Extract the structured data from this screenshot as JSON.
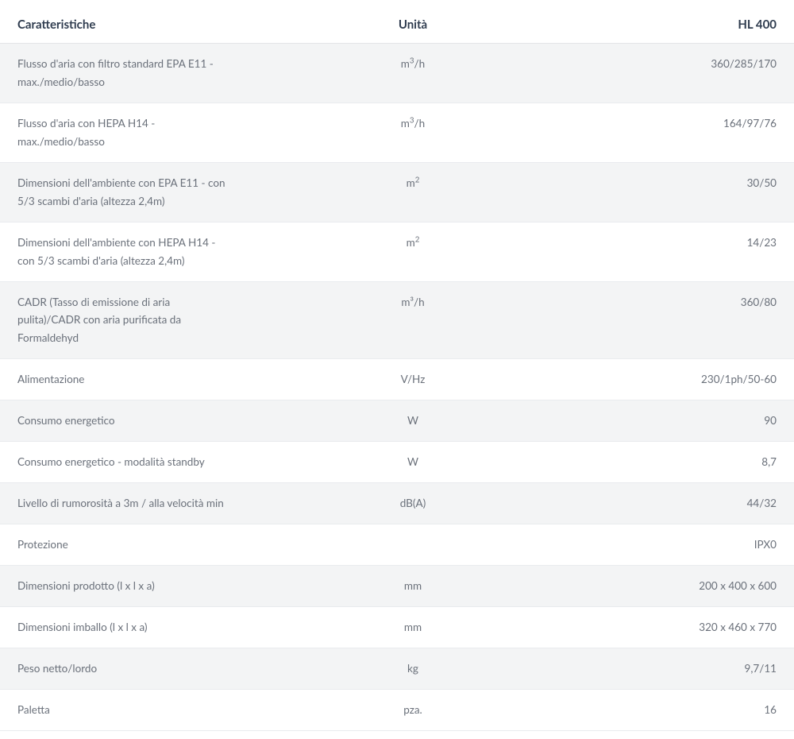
{
  "table": {
    "header": {
      "characteristics": "Caratteristiche",
      "unit": "Unità",
      "value": "HL 400"
    },
    "rows": [
      {
        "shade": true,
        "char_html": "Flusso d'aria con filtro standard EPA E11 -<br>max./medio/basso",
        "unit_html": "m<sup>3</sup>/h",
        "value": "360/285/170"
      },
      {
        "shade": false,
        "char_html": "Flusso d'aria con HEPA H14 -<br>max./medio/basso",
        "unit_html": "m<sup>3</sup>/h",
        "value": "164/97/76"
      },
      {
        "shade": true,
        "char_html": "Dimensioni dell'ambiente con EPA E11 - con<br>5/3 scambi d'aria (altezza 2,4m)",
        "unit_html": "m<sup>2</sup>",
        "value": "30/50"
      },
      {
        "shade": false,
        "char_html": "Dimensioni dell'ambiente con HEPA H14 -<br>con 5/3 scambi d'aria (altezza 2,4m)",
        "unit_html": "m<sup>2</sup>",
        "value": "14/23"
      },
      {
        "shade": true,
        "char_html": "CADR (Tasso di emissione di aria<br>pulita)/CADR con aria purificata da<br>Formaldehyd",
        "unit_html": "m³/h",
        "value": "360/80"
      },
      {
        "shade": false,
        "char_html": "Alimentazione",
        "unit_html": "V/Hz",
        "value": "230/1ph/50-60"
      },
      {
        "shade": true,
        "char_html": "Consumo energetico",
        "unit_html": "W",
        "value": "90"
      },
      {
        "shade": false,
        "char_html": "Consumo energetico - modalità standby",
        "unit_html": "W",
        "value": "8,7"
      },
      {
        "shade": true,
        "char_html": "Livello di rumorosità a 3m / alla velocità min",
        "unit_html": "dB(A)",
        "value": "44/32"
      },
      {
        "shade": false,
        "char_html": "Protezione",
        "unit_html": "",
        "value": "IPX0"
      },
      {
        "shade": true,
        "char_html": "Dimensioni prodotto (l x l x a)",
        "unit_html": "mm",
        "value": "200 x 400 x 600"
      },
      {
        "shade": false,
        "char_html": "Dimensioni imballo (l x l x a)",
        "unit_html": "mm",
        "value": "320 x 460 x 770"
      },
      {
        "shade": true,
        "char_html": "Peso netto/lordo",
        "unit_html": "kg",
        "value": "9,7/11"
      },
      {
        "shade": false,
        "char_html": "Paletta",
        "unit_html": "pza.",
        "value": "16"
      }
    ],
    "colors": {
      "header_text": "#2e3b4e",
      "body_text": "#6a707a",
      "shade_bg": "#f3f4f5",
      "noshade_bg": "#ffffff",
      "border": "#e9ebee"
    }
  }
}
